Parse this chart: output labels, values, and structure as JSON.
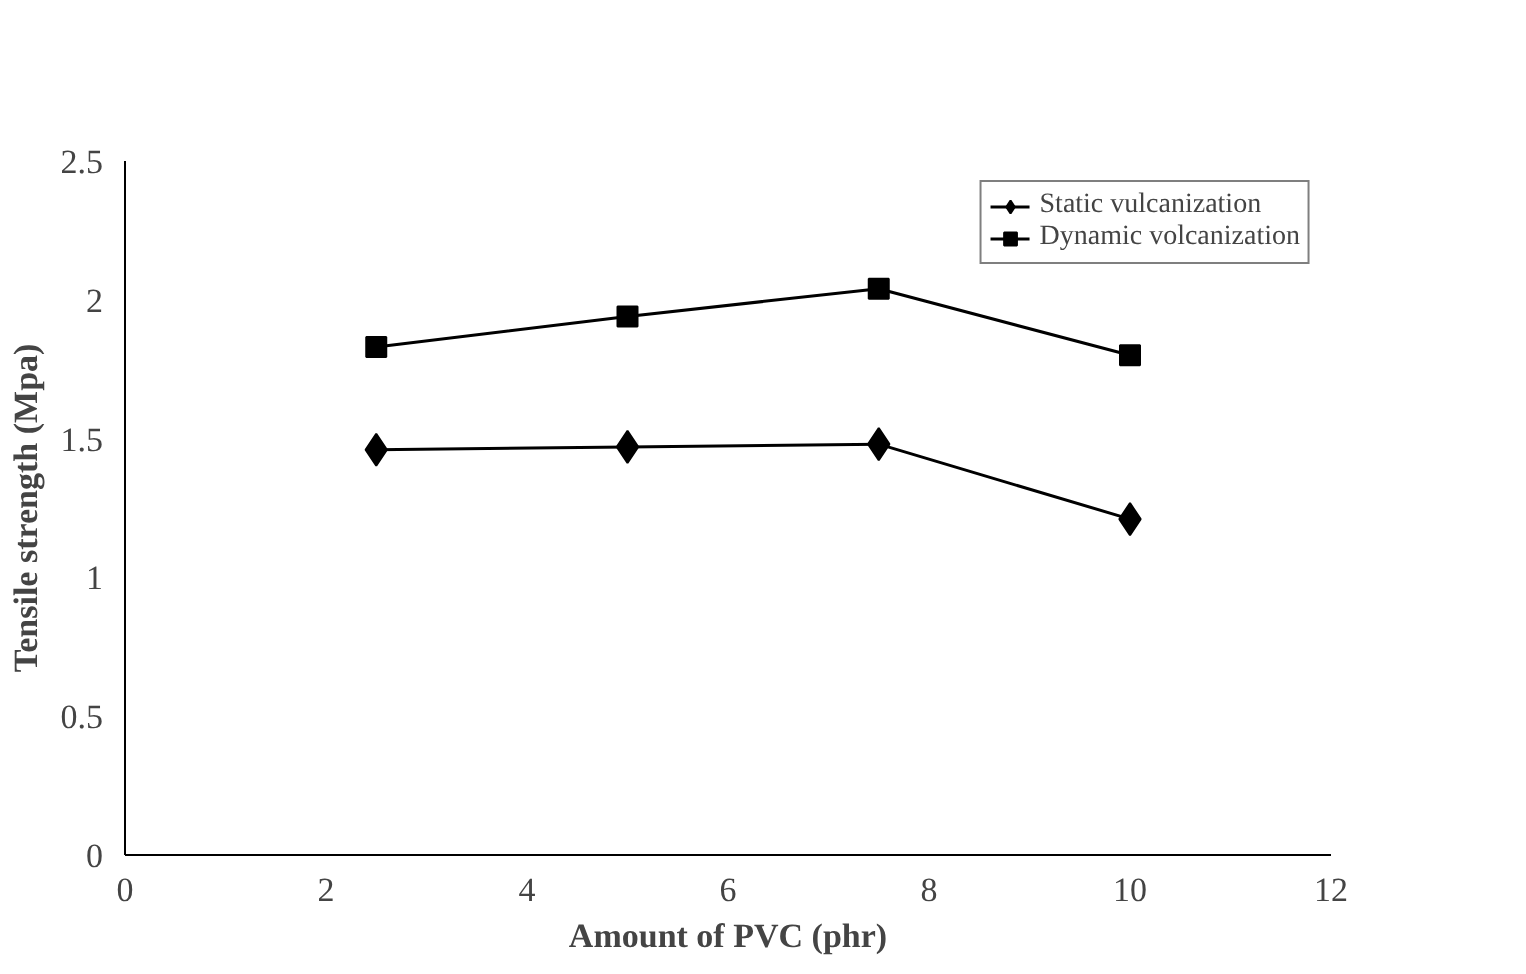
{
  "chart_data": {
    "type": "line",
    "xlabel": "Amount of PVC (phr)",
    "ylabel": "Tensile strength (Mpa)",
    "x": [
      2.5,
      5,
      7.5,
      10
    ],
    "series": [
      {
        "name": "Static vulcanization",
        "color": "#000000",
        "marker": "diamond",
        "values": [
          1.46,
          1.47,
          1.48,
          1.21
        ]
      },
      {
        "name": "Dynamic volcanization",
        "color": "#000000",
        "marker": "square",
        "values": [
          1.83,
          1.94,
          2.04,
          1.8
        ]
      }
    ],
    "xlim": [
      0,
      12
    ],
    "xticks": [
      0,
      2,
      4,
      6,
      8,
      10,
      12
    ],
    "ylim": [
      0,
      2.5
    ],
    "yticks": [
      0,
      0.5,
      1,
      1.5,
      2,
      2.5
    ],
    "grid": false,
    "legend": "top right",
    "line_style": "solid"
  }
}
